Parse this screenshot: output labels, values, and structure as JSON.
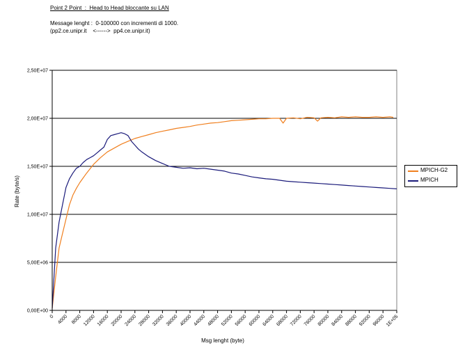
{
  "header": {
    "title": "Point 2 Point  :  Head to Head bloccante su LAN",
    "line1": "Message lenght :  0-100000 con incrementi di 1000.",
    "line2": "(pp2.ce.unipr.it    <------>  pp4.ce.unipr.it)"
  },
  "colors": {
    "mpich_g2": "#f07f1e",
    "mpich": "#1a1a7a",
    "gridline": "#000000"
  },
  "chart_data": {
    "type": "line",
    "title": "",
    "xlabel": "Msg lenght (byte)",
    "ylabel": "Rate (byte/s)",
    "ylim": [
      0,
      25000000
    ],
    "xlim": [
      0,
      100000
    ],
    "grid": "horizontal",
    "legend_position": "right",
    "y_ticks": [
      0,
      5000000,
      10000000,
      15000000,
      20000000,
      25000000
    ],
    "y_tick_labels": [
      "0,00E+00",
      "5,00E+06",
      "1,00E+07",
      "1,50E+07",
      "2,00E+07",
      "2,50E+07"
    ],
    "x_ticks": [
      0,
      4000,
      8000,
      12000,
      16000,
      20000,
      24000,
      28000,
      32000,
      36000,
      40000,
      44000,
      48000,
      52000,
      56000,
      60000,
      64000,
      68000,
      72000,
      76000,
      80000,
      84000,
      88000,
      92000,
      96000,
      100000
    ],
    "x_tick_labels": [
      "0",
      "4000",
      "8000",
      "12000",
      "16000",
      "20000",
      "24000",
      "28000",
      "32000",
      "36000",
      "40000",
      "44000",
      "48000",
      "52000",
      "56000",
      "60000",
      "64000",
      "68000",
      "72000",
      "76000",
      "80000",
      "84000",
      "88000",
      "92000",
      "96000",
      "1E+05"
    ],
    "series": [
      {
        "name": "MPICH-G2",
        "x": [
          0,
          1000,
          2000,
          3000,
          4000,
          5000,
          6000,
          7000,
          8000,
          9000,
          10000,
          12000,
          14000,
          16000,
          18000,
          20000,
          22000,
          24000,
          26000,
          28000,
          30000,
          32000,
          34000,
          36000,
          38000,
          40000,
          42000,
          44000,
          46000,
          48000,
          50000,
          52000,
          54000,
          56000,
          58000,
          60000,
          62000,
          64000,
          66000,
          67000,
          68000,
          70000,
          72000,
          74000,
          76000,
          77000,
          78000,
          80000,
          82000,
          84000,
          86000,
          88000,
          90000,
          92000,
          94000,
          96000,
          98000,
          99000
        ],
        "y": [
          200000,
          3500000,
          6500000,
          8000000,
          9500000,
          11000000,
          12000000,
          12700000,
          13300000,
          13800000,
          14300000,
          15200000,
          15900000,
          16500000,
          16900000,
          17300000,
          17600000,
          17900000,
          18100000,
          18300000,
          18500000,
          18650000,
          18800000,
          18950000,
          19050000,
          19150000,
          19300000,
          19400000,
          19500000,
          19550000,
          19650000,
          19750000,
          19800000,
          19850000,
          19900000,
          19950000,
          19950000,
          20000000,
          20000000,
          19500000,
          20000000,
          20050000,
          19950000,
          20100000,
          20050000,
          19700000,
          20050000,
          20100000,
          20050000,
          20150000,
          20100000,
          20150000,
          20100000,
          20100000,
          20150000,
          20100000,
          20150000,
          20100000
        ]
      },
      {
        "name": "MPICH",
        "x": [
          0,
          1000,
          2000,
          3000,
          4000,
          5000,
          6000,
          7000,
          8000,
          9000,
          10000,
          11000,
          12000,
          13000,
          14000,
          15000,
          16000,
          17000,
          18000,
          19000,
          20000,
          21000,
          22000,
          23000,
          24000,
          25000,
          26000,
          28000,
          30000,
          32000,
          34000,
          36000,
          38000,
          40000,
          42000,
          44000,
          46000,
          48000,
          50000,
          52000,
          54000,
          56000,
          58000,
          60000,
          62000,
          64000,
          66000,
          68000,
          70000,
          72000,
          74000,
          76000,
          78000,
          80000,
          82000,
          84000,
          86000,
          88000,
          90000,
          92000,
          94000,
          96000,
          98000,
          100000
        ],
        "y": [
          200000,
          6500000,
          9200000,
          11000000,
          12800000,
          13700000,
          14300000,
          14800000,
          15000000,
          15400000,
          15700000,
          15900000,
          16100000,
          16400000,
          16700000,
          17000000,
          17800000,
          18200000,
          18300000,
          18400000,
          18500000,
          18400000,
          18200000,
          17600000,
          17200000,
          16800000,
          16500000,
          16000000,
          15600000,
          15300000,
          15000000,
          14900000,
          14800000,
          14850000,
          14750000,
          14800000,
          14700000,
          14600000,
          14500000,
          14300000,
          14200000,
          14050000,
          13900000,
          13800000,
          13700000,
          13650000,
          13550000,
          13450000,
          13400000,
          13350000,
          13300000,
          13250000,
          13200000,
          13150000,
          13100000,
          13050000,
          13000000,
          12950000,
          12900000,
          12850000,
          12800000,
          12750000,
          12700000,
          12650000
        ]
      }
    ]
  }
}
